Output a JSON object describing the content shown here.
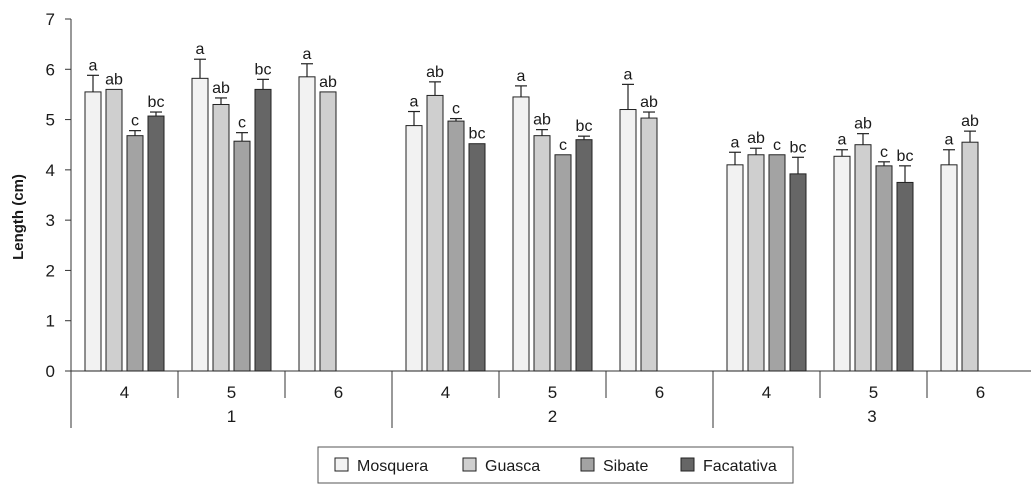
{
  "chart_data": {
    "type": "bar",
    "ylabel": "Length (cm)",
    "ylim": [
      0,
      7
    ],
    "yticks": [
      0,
      1,
      2,
      3,
      4,
      5,
      6,
      7
    ],
    "grid": false,
    "legend_position": "bottom",
    "colors": {
      "Mosquera": "#f2f2f2",
      "Guasca": "#cfcfcf",
      "Sibate": "#a3a3a3",
      "Facatativa": "#666666"
    },
    "series": [
      {
        "name": "Mosquera"
      },
      {
        "name": "Guasca"
      },
      {
        "name": "Sibate"
      },
      {
        "name": "Facatativa"
      }
    ],
    "groups": [
      {
        "label": "1",
        "subgroups": [
          {
            "label": "4",
            "bars": [
              {
                "series": "Mosquera",
                "value": 5.55,
                "err": 0.33,
                "label": "a"
              },
              {
                "series": "Guasca",
                "value": 5.6,
                "err": 0,
                "label": "ab"
              },
              {
                "series": "Sibate",
                "value": 4.68,
                "err": 0.1,
                "label": "c"
              },
              {
                "series": "Facatativa",
                "value": 5.07,
                "err": 0.08,
                "label": "bc"
              }
            ]
          },
          {
            "label": "5",
            "bars": [
              {
                "series": "Mosquera",
                "value": 5.82,
                "err": 0.38,
                "label": "a"
              },
              {
                "series": "Guasca",
                "value": 5.3,
                "err": 0.13,
                "label": "ab"
              },
              {
                "series": "Sibate",
                "value": 4.57,
                "err": 0.17,
                "label": "c"
              },
              {
                "series": "Facatativa",
                "value": 5.6,
                "err": 0.2,
                "label": "bc"
              }
            ]
          },
          {
            "label": "6",
            "bars": [
              {
                "series": "Mosquera",
                "value": 5.85,
                "err": 0.26,
                "label": "a"
              },
              {
                "series": "Guasca",
                "value": 5.55,
                "err": 0,
                "label": "ab"
              }
            ]
          }
        ]
      },
      {
        "label": "2",
        "subgroups": [
          {
            "label": "4",
            "bars": [
              {
                "series": "Mosquera",
                "value": 4.88,
                "err": 0.28,
                "label": "a"
              },
              {
                "series": "Guasca",
                "value": 5.48,
                "err": 0.27,
                "label": "ab"
              },
              {
                "series": "Sibate",
                "value": 4.97,
                "err": 0.05,
                "label": "c"
              },
              {
                "series": "Facatativa",
                "value": 4.52,
                "err": 0,
                "label": "bc"
              }
            ]
          },
          {
            "label": "5",
            "bars": [
              {
                "series": "Mosquera",
                "value": 5.45,
                "err": 0.22,
                "label": "a"
              },
              {
                "series": "Guasca",
                "value": 4.68,
                "err": 0.12,
                "label": "ab"
              },
              {
                "series": "Sibate",
                "value": 4.3,
                "err": 0,
                "label": "c"
              },
              {
                "series": "Facatativa",
                "value": 4.6,
                "err": 0.07,
                "label": "bc"
              }
            ]
          },
          {
            "label": "6",
            "bars": [
              {
                "series": "Mosquera",
                "value": 5.2,
                "err": 0.5,
                "label": "a"
              },
              {
                "series": "Guasca",
                "value": 5.03,
                "err": 0.12,
                "label": "ab"
              }
            ]
          }
        ]
      },
      {
        "label": "3",
        "subgroups": [
          {
            "label": "4",
            "bars": [
              {
                "series": "Mosquera",
                "value": 4.1,
                "err": 0.25,
                "label": "a"
              },
              {
                "series": "Guasca",
                "value": 4.3,
                "err": 0.13,
                "label": "ab"
              },
              {
                "series": "Sibate",
                "value": 4.3,
                "err": 0,
                "label": "c"
              },
              {
                "series": "Facatativa",
                "value": 3.92,
                "err": 0.33,
                "label": "bc"
              }
            ]
          },
          {
            "label": "5",
            "bars": [
              {
                "series": "Mosquera",
                "value": 4.27,
                "err": 0.13,
                "label": "a"
              },
              {
                "series": "Guasca",
                "value": 4.5,
                "err": 0.22,
                "label": "ab"
              },
              {
                "series": "Sibate",
                "value": 4.08,
                "err": 0.08,
                "label": "c"
              },
              {
                "series": "Facatativa",
                "value": 3.75,
                "err": 0.33,
                "label": "bc"
              }
            ]
          },
          {
            "label": "6",
            "bars": [
              {
                "series": "Mosquera",
                "value": 4.1,
                "err": 0.3,
                "label": "a"
              },
              {
                "series": "Guasca",
                "value": 4.55,
                "err": 0.22,
                "label": "ab"
              }
            ]
          }
        ]
      }
    ]
  }
}
